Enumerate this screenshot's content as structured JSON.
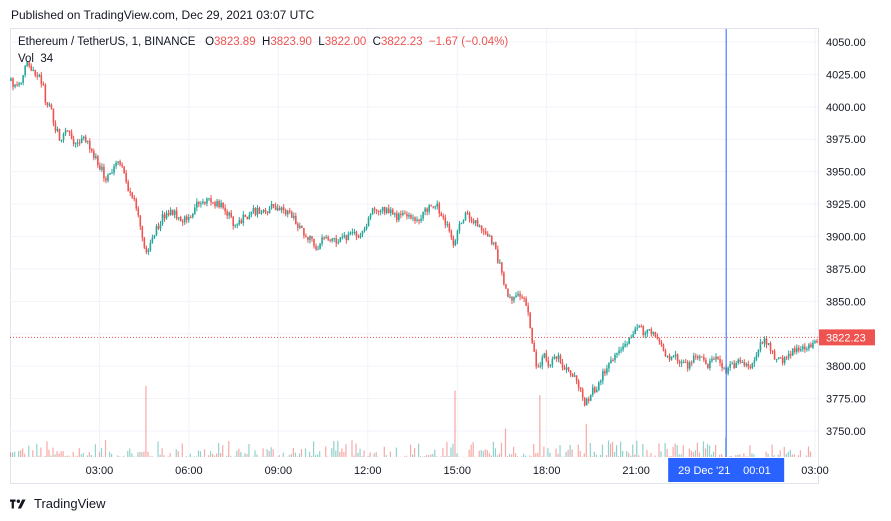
{
  "header": {
    "published": "Published on TradingView.com, Dec 29, 2021 03:07 UTC"
  },
  "legend": {
    "symbol": "Ethereum / TetherUS, 1, BINANCE",
    "o_label": "O",
    "o_value": "3823.89",
    "h_label": "H",
    "h_value": "3823.90",
    "l_label": "L",
    "l_value": "3822.00",
    "c_label": "C",
    "c_value": "3822.23",
    "change": "−1.67 (−0.04%)",
    "vol_label": "Vol",
    "vol_value": "34"
  },
  "colors": {
    "up": "#26a69a",
    "down": "#ef5350",
    "crosshair": "#2962ff",
    "grid": "#f0f3fa",
    "axis_text": "#131722"
  },
  "chart_data": {
    "type": "candlestick",
    "title": "Ethereum / TetherUS, 1, BINANCE",
    "xlabel": "",
    "ylabel": "",
    "ylim": [
      3730,
      4060
    ],
    "y_ticks": [
      3750,
      3775,
      3800,
      3825,
      3850,
      3875,
      3900,
      3925,
      3950,
      3975,
      4000,
      4025,
      4050
    ],
    "y_tick_labels": [
      "3750.00",
      "3775.00",
      "3800.00",
      "3825.00",
      "3850.00",
      "3875.00",
      "3900.00",
      "3925.00",
      "3950.00",
      "3975.00",
      "4000.00",
      "4025.00",
      "4050.00"
    ],
    "x_tick_labels": [
      "03:00",
      "06:00",
      "09:00",
      "12:00",
      "15:00",
      "18:00",
      "21:00",
      "00:01",
      "03:00"
    ],
    "x_range_hours": [
      0,
      27.1
    ],
    "x_tick_hours": [
      3,
      6,
      9,
      12,
      15,
      18,
      21,
      24.02,
      27
    ],
    "crosshair": {
      "hours": 24.02,
      "label_date": "29 Dec '21",
      "label_time": "00:01"
    },
    "last_price": {
      "value": 3822.23,
      "label": "3822.23"
    },
    "grid": true,
    "price_path": [
      [
        0.0,
        4020
      ],
      [
        0.3,
        4015
      ],
      [
        0.55,
        4032
      ],
      [
        0.9,
        4025
      ],
      [
        1.1,
        4018
      ],
      [
        1.2,
        4000
      ],
      [
        1.35,
        4000
      ],
      [
        1.5,
        3985
      ],
      [
        1.7,
        3975
      ],
      [
        1.9,
        3985
      ],
      [
        2.1,
        3975
      ],
      [
        2.3,
        3970
      ],
      [
        2.5,
        3978
      ],
      [
        2.7,
        3965
      ],
      [
        3.0,
        3955
      ],
      [
        3.2,
        3945
      ],
      [
        3.4,
        3950
      ],
      [
        3.6,
        3958
      ],
      [
        3.8,
        3950
      ],
      [
        4.0,
        3935
      ],
      [
        4.2,
        3925
      ],
      [
        4.4,
        3905
      ],
      [
        4.55,
        3885
      ],
      [
        4.8,
        3900
      ],
      [
        5.1,
        3915
      ],
      [
        5.4,
        3920
      ],
      [
        5.8,
        3913
      ],
      [
        6.1,
        3918
      ],
      [
        6.3,
        3925
      ],
      [
        6.6,
        3928
      ],
      [
        6.9,
        3925
      ],
      [
        7.2,
        3922
      ],
      [
        7.5,
        3910
      ],
      [
        7.9,
        3915
      ],
      [
        8.2,
        3920
      ],
      [
        8.5,
        3918
      ],
      [
        8.8,
        3923
      ],
      [
        9.1,
        3920
      ],
      [
        9.4,
        3918
      ],
      [
        9.7,
        3907
      ],
      [
        10.0,
        3900
      ],
      [
        10.3,
        3892
      ],
      [
        10.6,
        3900
      ],
      [
        11.0,
        3897
      ],
      [
        11.4,
        3900
      ],
      [
        11.8,
        3902
      ],
      [
        12.1,
        3918
      ],
      [
        12.4,
        3922
      ],
      [
        12.7,
        3920
      ],
      [
        13.0,
        3915
      ],
      [
        13.3,
        3918
      ],
      [
        13.6,
        3910
      ],
      [
        14.0,
        3922
      ],
      [
        14.3,
        3925
      ],
      [
        14.5,
        3915
      ],
      [
        14.7,
        3905
      ],
      [
        14.9,
        3893
      ],
      [
        15.1,
        3910
      ],
      [
        15.3,
        3918
      ],
      [
        15.6,
        3910
      ],
      [
        15.9,
        3905
      ],
      [
        16.2,
        3895
      ],
      [
        16.4,
        3880
      ],
      [
        16.6,
        3860
      ],
      [
        16.8,
        3850
      ],
      [
        17.0,
        3858
      ],
      [
        17.2,
        3855
      ],
      [
        17.4,
        3840
      ],
      [
        17.6,
        3805
      ],
      [
        17.75,
        3795
      ],
      [
        17.9,
        3810
      ],
      [
        18.1,
        3800
      ],
      [
        18.3,
        3808
      ],
      [
        18.6,
        3800
      ],
      [
        18.9,
        3793
      ],
      [
        19.1,
        3783
      ],
      [
        19.3,
        3770
      ],
      [
        19.5,
        3780
      ],
      [
        19.7,
        3785
      ],
      [
        19.9,
        3795
      ],
      [
        20.1,
        3800
      ],
      [
        20.3,
        3810
      ],
      [
        20.5,
        3815
      ],
      [
        20.7,
        3820
      ],
      [
        20.9,
        3825
      ],
      [
        21.1,
        3830
      ],
      [
        21.3,
        3825
      ],
      [
        21.5,
        3828
      ],
      [
        21.7,
        3822
      ],
      [
        21.9,
        3812
      ],
      [
        22.1,
        3808
      ],
      [
        22.3,
        3808
      ],
      [
        22.5,
        3803
      ],
      [
        22.7,
        3800
      ],
      [
        22.9,
        3805
      ],
      [
        23.1,
        3808
      ],
      [
        23.4,
        3800
      ],
      [
        23.7,
        3808
      ],
      [
        24.0,
        3795
      ],
      [
        24.2,
        3800
      ],
      [
        24.5,
        3805
      ],
      [
        24.8,
        3800
      ],
      [
        25.1,
        3812
      ],
      [
        25.3,
        3822
      ],
      [
        25.5,
        3815
      ],
      [
        25.7,
        3803
      ],
      [
        25.9,
        3805
      ],
      [
        26.1,
        3810
      ],
      [
        26.4,
        3812
      ],
      [
        26.7,
        3815
      ],
      [
        27.0,
        3818
      ],
      [
        27.1,
        3822
      ]
    ],
    "volume_spikes": [
      [
        4.55,
        0.75
      ],
      [
        14.9,
        0.7
      ],
      [
        17.75,
        0.65
      ],
      [
        19.3,
        0.35
      ],
      [
        16.6,
        0.3
      ],
      [
        24.0,
        0.2
      ]
    ]
  }
}
